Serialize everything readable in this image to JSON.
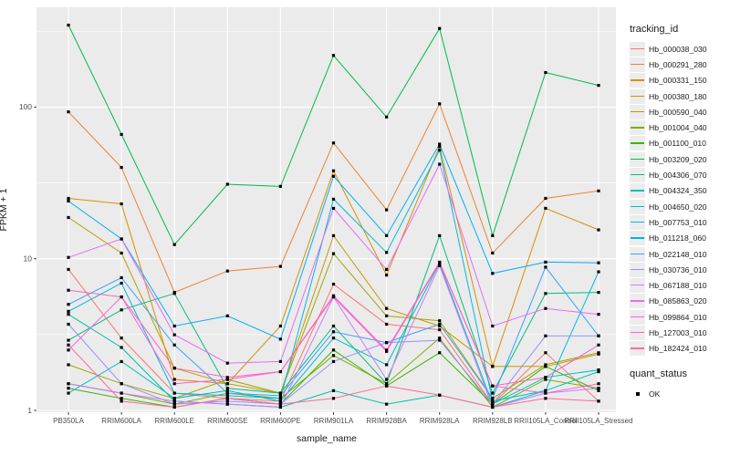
{
  "figure": {
    "background": "#FFFFFF",
    "panel_background": "#EBEBEB",
    "grid_color": "#FFFFFF",
    "tick_color": "#333333",
    "tick_label_color": "#4D4D4D",
    "point_color": "#000000"
  },
  "axes": {
    "x_label": "sample_name",
    "y_label": "FPKM + 1",
    "y_tick_labels": [
      "1",
      "10",
      "100"
    ]
  },
  "legend": {
    "tracking_title": "tracking_id",
    "quant_title": "quant_status",
    "quant_ok_label": "OK"
  },
  "chart_data": {
    "type": "line",
    "title": "",
    "xlabel": "sample_name",
    "ylabel": "FPKM + 1",
    "y_scale": "log10",
    "ylim": [
      1,
      440
    ],
    "y_ticks": [
      1,
      10,
      100
    ],
    "y_minor_ticks": [
      3.162,
      31.62,
      316.2
    ],
    "grid": true,
    "legend_position": "right",
    "legend_title": "tracking_id",
    "point_marker": "black-square",
    "categories": [
      "PB350LA",
      "RRIM600LA",
      "RRIM600LE",
      "RRIM600SE",
      "RRIM600PE",
      "RRIM901LA",
      "RRIM928BA",
      "RRIM928LA",
      "RRIM928LB",
      "RRII105LA_Control",
      "RRII105LA_Stressed"
    ],
    "series": [
      {
        "name": "Hb_000038_030",
        "color": "#F8766D",
        "values": [
          8.5,
          3.0,
          1.3,
          1.2,
          1.15,
          6.8,
          3.7,
          3.4,
          1.1,
          2.4,
          1.15
        ]
      },
      {
        "name": "Hb_000291_280",
        "color": "#EA8331",
        "values": [
          93,
          40,
          6.0,
          8.3,
          8.9,
          58,
          21,
          105,
          10.9,
          25,
          28
        ]
      },
      {
        "name": "Hb_000331_150",
        "color": "#D89000",
        "values": [
          25,
          23,
          1.6,
          1.5,
          3.6,
          38,
          7.8,
          55,
          1.95,
          21.5,
          15.5
        ]
      },
      {
        "name": "Hb_000380_180",
        "color": "#C09B00",
        "values": [
          18.7,
          10.9,
          1.9,
          1.5,
          1.3,
          14.2,
          4.7,
          3.6,
          1.95,
          1.95,
          2.35
        ]
      },
      {
        "name": "Hb_000590_040",
        "color": "#A3A500",
        "values": [
          2.0,
          1.5,
          1.2,
          1.6,
          1.3,
          10.8,
          4.2,
          3.9,
          1.2,
          2.0,
          2.4
        ]
      },
      {
        "name": "Hb_001004_040",
        "color": "#7CAE00",
        "values": [
          1.5,
          1.3,
          1.1,
          1.3,
          1.2,
          2.3,
          1.5,
          3.0,
          1.05,
          1.6,
          1.4
        ]
      },
      {
        "name": "Hb_001100_010",
        "color": "#39B600",
        "values": [
          1.4,
          1.2,
          1.05,
          1.2,
          1.1,
          2.5,
          1.45,
          2.4,
          1.1,
          1.95,
          1.35
        ]
      },
      {
        "name": "Hb_003209_020",
        "color": "#00BB4E",
        "values": [
          347,
          66,
          12.4,
          31,
          30,
          219,
          86,
          330,
          14.2,
          169,
          139
        ]
      },
      {
        "name": "Hb_004306_070",
        "color": "#00BF7D",
        "values": [
          2.9,
          4.6,
          5.9,
          1.4,
          1.3,
          3.6,
          1.5,
          14.2,
          1.3,
          5.9,
          6.0
        ]
      },
      {
        "name": "Hb_004324_350",
        "color": "#00C1A3",
        "values": [
          4.3,
          2.6,
          1.15,
          1.1,
          1.05,
          1.35,
          1.1,
          1.26,
          1.05,
          1.35,
          1.8
        ]
      },
      {
        "name": "Hb_004650_020",
        "color": "#00BFC4",
        "values": [
          1.3,
          2.1,
          1.2,
          1.35,
          1.15,
          3.0,
          2.0,
          9.3,
          1.1,
          1.65,
          1.85
        ]
      },
      {
        "name": "Hb_007753_010",
        "color": "#00BAE0",
        "values": [
          4.5,
          6.9,
          1.3,
          1.25,
          1.2,
          24.7,
          11,
          52,
          1.15,
          1.35,
          8.2
        ]
      },
      {
        "name": "Hb_011218_060",
        "color": "#00B0F6",
        "values": [
          24,
          13.5,
          3.6,
          4.2,
          2.95,
          35,
          14.2,
          57,
          8.0,
          9.5,
          9.4
        ]
      },
      {
        "name": "Hb_022148_010",
        "color": "#35A2FF",
        "values": [
          5.0,
          7.5,
          2.7,
          1.3,
          1.25,
          3.3,
          2.8,
          3.7,
          1.2,
          8.8,
          3.1
        ]
      },
      {
        "name": "Hb_030736_010",
        "color": "#9590FF",
        "values": [
          3.7,
          1.5,
          1.1,
          1.15,
          1.1,
          2.1,
          2.8,
          2.9,
          1.1,
          3.1,
          3.1
        ]
      },
      {
        "name": "Hb_067188_010",
        "color": "#C77CFF",
        "values": [
          1.5,
          1.3,
          1.15,
          1.1,
          1.05,
          5.6,
          1.6,
          9.0,
          1.05,
          1.3,
          1.4
        ]
      },
      {
        "name": "Hb_085863_020",
        "color": "#E76BF3",
        "values": [
          10.2,
          13.5,
          3.15,
          2.05,
          2.1,
          21.5,
          8.5,
          42,
          3.6,
          4.7,
          4.3
        ]
      },
      {
        "name": "Hb_099864_010",
        "color": "#FA62DB",
        "values": [
          2.5,
          5.6,
          1.5,
          1.6,
          1.8,
          5.6,
          2.45,
          9.4,
          1.45,
          1.3,
          1.5
        ]
      },
      {
        "name": "Hb_127003_010",
        "color": "#FF62BC",
        "values": [
          6.2,
          5.6,
          1.9,
          1.65,
          1.8,
          5.7,
          2.5,
          9.5,
          1.45,
          1.65,
          2.7
        ]
      },
      {
        "name": "Hb_182424_010",
        "color": "#FF6A98",
        "values": [
          2.7,
          1.15,
          1.05,
          1.2,
          1.1,
          1.2,
          1.45,
          1.26,
          1.05,
          1.2,
          1.15
        ]
      }
    ],
    "quant_status": {
      "title": "quant_status",
      "items": [
        {
          "label": "OK",
          "marker": "square",
          "color": "#000000"
        }
      ]
    }
  }
}
